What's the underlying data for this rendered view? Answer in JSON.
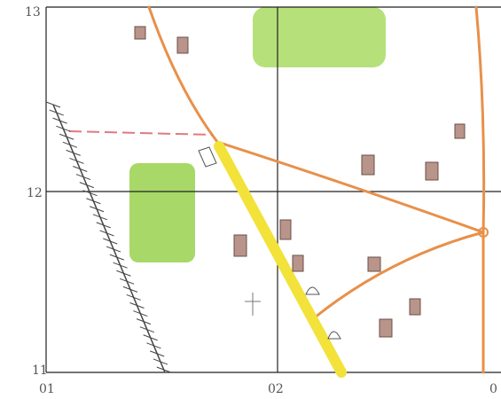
{
  "grid": {
    "y_labels": [
      "13",
      "12",
      "11"
    ],
    "x_labels": [
      "01",
      "02",
      "0"
    ]
  }
}
